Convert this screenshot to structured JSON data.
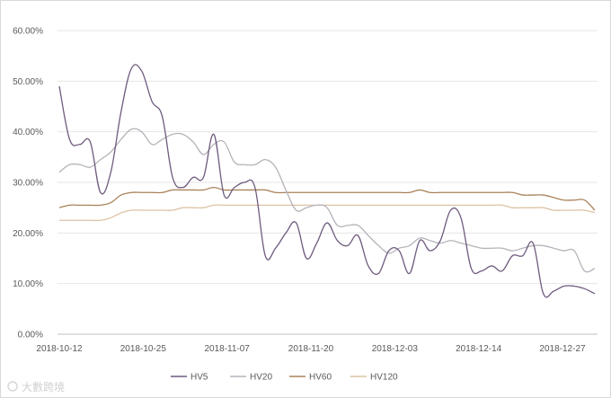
{
  "chart_data": {
    "type": "line",
    "title": "",
    "xlabel": "",
    "ylabel": "",
    "ylim": [
      0,
      60
    ],
    "y_ticks": [
      "0.00%",
      "10.00%",
      "20.00%",
      "30.00%",
      "40.00%",
      "50.00%",
      "60.00%"
    ],
    "x_ticks": [
      "2018-10-12",
      "2018-10-25",
      "2018-11-07",
      "2018-11-20",
      "2018-12-03",
      "2018-12-14",
      "2018-12-27"
    ],
    "grid": "horizontal",
    "legend_position": "bottom",
    "series": [
      {
        "name": "HV5",
        "color": "#6e5a7e",
        "values": [
          49.0,
          38.5,
          37.5,
          38.0,
          28.0,
          32.0,
          44.0,
          52.5,
          52.0,
          46.0,
          43.0,
          31.0,
          29.0,
          31.0,
          31.0,
          39.5,
          27.5,
          29.0,
          30.0,
          29.0,
          15.5,
          17.0,
          20.0,
          22.0,
          15.0,
          18.0,
          22.0,
          18.5,
          17.5,
          19.5,
          13.5,
          12.0,
          16.5,
          16.5,
          12.0,
          18.5,
          16.5,
          18.5,
          24.5,
          23.0,
          13.0,
          12.5,
          13.5,
          12.5,
          15.5,
          15.5,
          18.0,
          8.0,
          8.5,
          9.5,
          9.5,
          9.0,
          8.0
        ]
      },
      {
        "name": "HV20",
        "color": "#b7b2ba",
        "values": [
          32.0,
          33.5,
          33.5,
          33.0,
          34.5,
          36.0,
          38.5,
          40.5,
          40.0,
          37.5,
          38.5,
          39.5,
          39.5,
          38.0,
          35.5,
          37.5,
          38.0,
          34.0,
          33.5,
          33.5,
          34.5,
          33.0,
          28.5,
          24.5,
          25.0,
          25.5,
          25.0,
          21.5,
          21.5,
          21.5,
          19.5,
          17.5,
          16.0,
          17.0,
          17.5,
          19.0,
          18.5,
          18.0,
          18.5,
          18.0,
          17.5,
          17.0,
          17.0,
          17.0,
          16.5,
          17.0,
          17.5,
          17.5,
          17.0,
          16.5,
          16.5,
          12.5,
          13.0
        ]
      },
      {
        "name": "HV60",
        "color": "#a9825a",
        "values": [
          25.0,
          25.5,
          25.5,
          25.5,
          25.5,
          26.0,
          27.5,
          28.0,
          28.0,
          28.0,
          28.0,
          28.5,
          28.5,
          28.5,
          28.5,
          29.0,
          28.5,
          28.5,
          28.5,
          28.5,
          28.5,
          28.0,
          28.0,
          28.0,
          28.0,
          28.0,
          28.0,
          28.0,
          28.0,
          28.0,
          28.0,
          28.0,
          28.0,
          28.0,
          28.0,
          28.5,
          28.0,
          28.0,
          28.0,
          28.0,
          28.0,
          28.0,
          28.0,
          28.0,
          28.0,
          27.5,
          27.5,
          27.5,
          27.0,
          26.5,
          26.5,
          26.5,
          24.5
        ]
      },
      {
        "name": "HV120",
        "color": "#dcc3a5",
        "values": [
          22.5,
          22.5,
          22.5,
          22.5,
          22.5,
          23.0,
          24.0,
          24.5,
          24.5,
          24.5,
          24.5,
          24.5,
          25.0,
          25.0,
          25.0,
          25.5,
          25.5,
          25.5,
          25.5,
          25.5,
          25.5,
          25.5,
          25.5,
          25.5,
          25.5,
          25.5,
          25.5,
          25.5,
          25.5,
          25.5,
          25.5,
          25.5,
          25.5,
          25.5,
          25.5,
          25.5,
          25.5,
          25.5,
          25.5,
          25.5,
          25.5,
          25.5,
          25.5,
          25.5,
          25.0,
          25.0,
          25.0,
          25.0,
          24.5,
          24.5,
          24.5,
          24.5,
          24.0
        ]
      }
    ]
  },
  "watermark": "大數跨境"
}
